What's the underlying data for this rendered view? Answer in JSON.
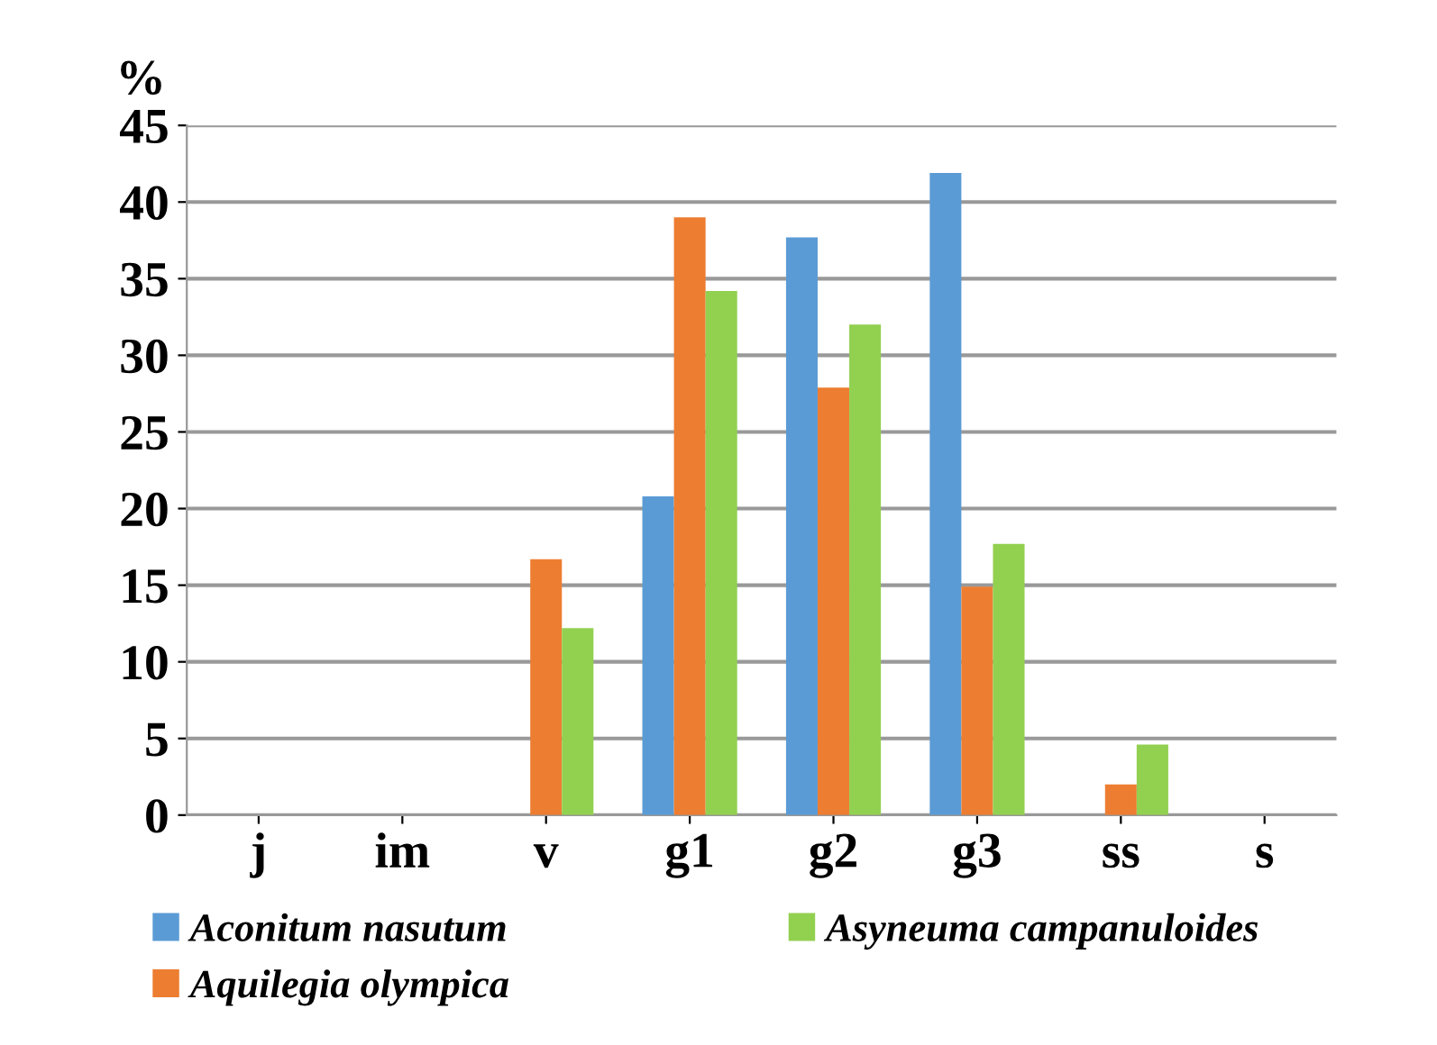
{
  "chart_data": {
    "type": "bar",
    "ylabel": "%",
    "categories": [
      "j",
      "im",
      "v",
      "g1",
      "g2",
      "g3",
      "ss",
      "s"
    ],
    "series": [
      {
        "name": "Aconitum nasutum",
        "color": "#5b9bd5",
        "values": [
          0,
          0,
          0,
          20.8,
          37.7,
          41.9,
          0,
          0
        ]
      },
      {
        "name": "Aquilegia olympica",
        "color": "#ed7d31",
        "values": [
          0,
          0,
          16.7,
          39.0,
          27.9,
          14.9,
          2.0,
          0
        ]
      },
      {
        "name": "Asyneuma campanuloides",
        "color": "#92d050",
        "values": [
          0,
          0,
          12.2,
          34.2,
          32.0,
          17.7,
          4.6,
          0
        ]
      }
    ],
    "ylim": [
      0,
      45
    ],
    "yticks": [
      0,
      5,
      10,
      15,
      20,
      25,
      30,
      35,
      40,
      45
    ],
    "grid": "y",
    "legend": "bottom"
  }
}
